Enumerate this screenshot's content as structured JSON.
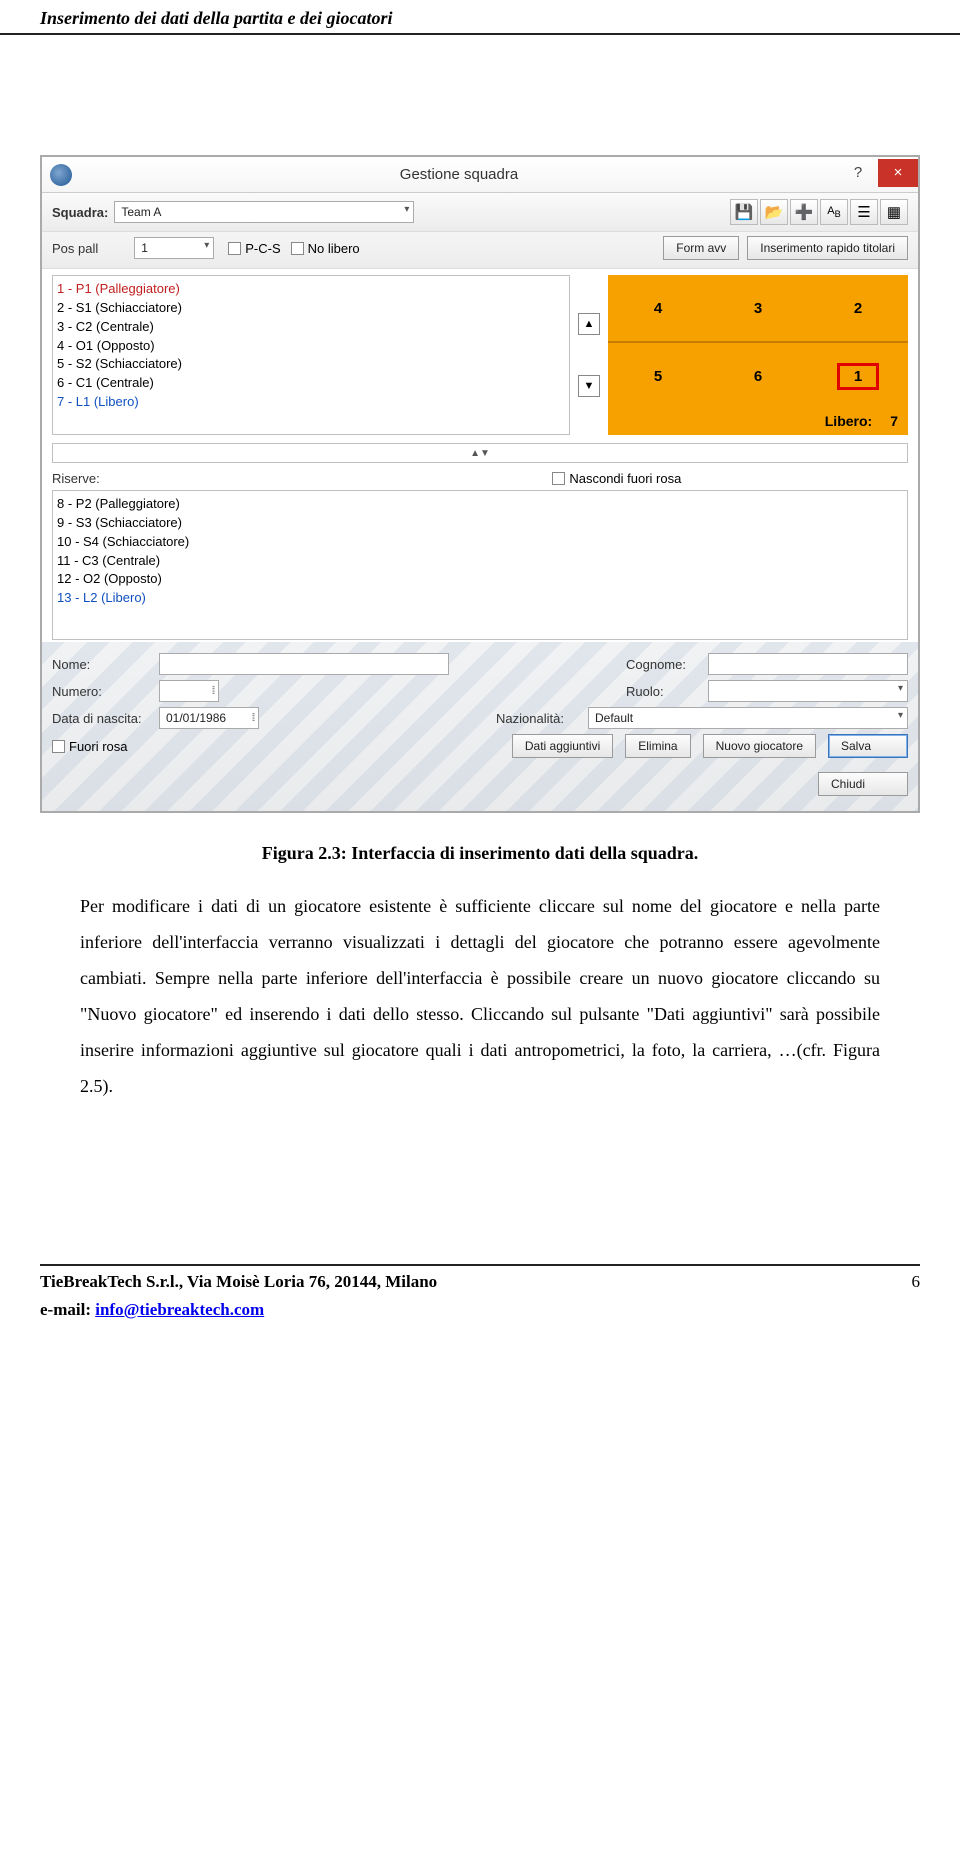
{
  "page_header": "Inserimento dei dati della partita e dei giocatori",
  "window": {
    "title": "Gestione squadra",
    "help_icon": "?",
    "close_icon": "×"
  },
  "toolbar": {
    "squadra_label": "Squadra:",
    "squadra_value": "Team A",
    "icons": [
      "save-icon",
      "open-icon",
      "add-icon",
      "font-icon",
      "list-icon",
      "grid-icon"
    ]
  },
  "row2": {
    "pospall_label": "Pos pall",
    "pospall_value": "1",
    "pcs_label": "P-C-S",
    "nolibero_label": "No libero",
    "formavv_label": "Form avv",
    "inserimento_label": "Inserimento rapido titolari"
  },
  "players": [
    {
      "text": "1 - P1 (Palleggiatore)",
      "cls": "red"
    },
    {
      "text": "2 - S1 (Schiacciatore)",
      "cls": ""
    },
    {
      "text": "3 - C2 (Centrale)",
      "cls": ""
    },
    {
      "text": "4 - O1 (Opposto)",
      "cls": ""
    },
    {
      "text": "5 - S2 (Schiacciatore)",
      "cls": ""
    },
    {
      "text": "6 - C1 (Centrale)",
      "cls": ""
    },
    {
      "text": "7 - L1 (Libero)",
      "cls": "blue"
    }
  ],
  "court": {
    "front": [
      "4",
      "3",
      "2"
    ],
    "back": [
      "5",
      "6",
      "1"
    ],
    "highlight_index": 2,
    "libero_label": "Libero:",
    "libero_value": "7",
    "bg_color": "#f6a100",
    "highlight_border": "#e00000"
  },
  "collapse_glyph": "▲▼",
  "riserve": {
    "label": "Riserve:",
    "nascondi_label": "Nascondi fuori rosa",
    "list": [
      {
        "text": "8 - P2 (Palleggiatore)",
        "cls": ""
      },
      {
        "text": "9 - S3 (Schiacciatore)",
        "cls": ""
      },
      {
        "text": "10 - S4 (Schiacciatore)",
        "cls": ""
      },
      {
        "text": "11 - C3 (Centrale)",
        "cls": ""
      },
      {
        "text": "12 - O2 (Opposto)",
        "cls": ""
      },
      {
        "text": "13 - L2 (Libero)",
        "cls": "blue"
      }
    ]
  },
  "form": {
    "nome_label": "Nome:",
    "nome_value": "",
    "cognome_label": "Cognome:",
    "cognome_value": "",
    "numero_label": "Numero:",
    "numero_value": "",
    "ruolo_label": "Ruolo:",
    "ruolo_value": "",
    "data_label": "Data di nascita:",
    "data_value": "01/01/1986",
    "naz_label": "Nazionalità:",
    "naz_value": "Default",
    "fuorirosa_label": "Fuori rosa",
    "btn_dati": "Dati aggiuntivi",
    "btn_elimina": "Elimina",
    "btn_nuovo": "Nuovo giocatore",
    "btn_salva": "Salva",
    "btn_chiudi": "Chiudi"
  },
  "caption": "Figura 2.3: Interfaccia di inserimento dati della squadra.",
  "body": "Per modificare i dati di un giocatore esistente è sufficiente cliccare sul nome del giocatore e nella parte inferiore dell'interfaccia verranno visualizzati i dettagli del giocatore che potranno essere agevolmente cambiati. Sempre nella parte inferiore dell'interfaccia è possibile creare un nuovo giocatore cliccando su \"Nuovo giocatore\" ed inserendo i dati dello stesso. Cliccando sul pulsante \"Dati aggiuntivi\" sarà possibile inserire informazioni aggiuntive sul giocatore quali i dati antropometrici, la foto, la carriera, …(cfr. Figura 2.5).",
  "footer": {
    "company": "TieBreakTech S.r.l., Via Moisè Loria 76, 20144, Milano",
    "page": "6",
    "email_label": "e-mail: ",
    "email": "info@tiebreaktech.com"
  }
}
